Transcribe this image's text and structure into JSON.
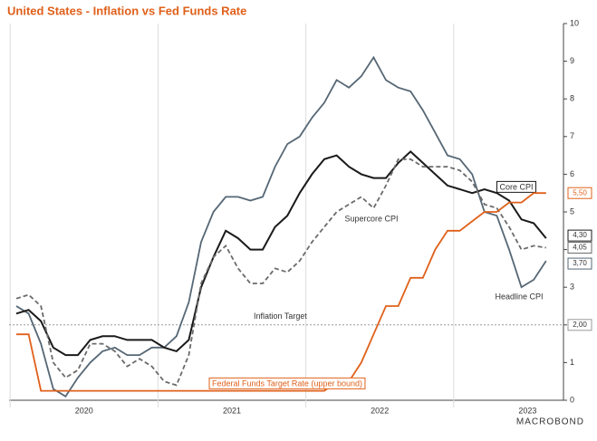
{
  "chart_data": {
    "type": "line",
    "title": "United States - Inflation vs Fed Funds Rate",
    "categories": [
      null,
      null,
      null,
      null,
      null,
      "2020",
      null,
      null,
      null,
      null,
      null,
      null,
      null,
      null,
      null,
      null,
      null,
      "2021",
      null,
      null,
      null,
      null,
      null,
      null,
      null,
      null,
      null,
      null,
      null,
      "2022",
      null,
      null,
      null,
      null,
      null,
      null,
      null,
      null,
      null,
      null,
      null,
      "2023",
      null,
      null
    ],
    "ylim": [
      0,
      10
    ],
    "yticks": [
      0,
      1,
      2,
      3,
      4,
      5,
      6,
      7,
      8,
      9,
      10
    ],
    "series": [
      {
        "name": "Headline CPI",
        "color": "#566775",
        "dash": false,
        "end_label": "3,70",
        "values": [
          2.5,
          2.3,
          1.5,
          0.3,
          0.1,
          0.6,
          1.0,
          1.3,
          1.4,
          1.2,
          1.2,
          1.4,
          1.4,
          1.7,
          2.6,
          4.2,
          5.0,
          5.4,
          5.4,
          5.3,
          5.4,
          6.2,
          6.8,
          7.0,
          7.5,
          7.9,
          8.5,
          8.3,
          8.6,
          9.1,
          8.5,
          8.3,
          8.2,
          7.7,
          7.1,
          6.5,
          6.4,
          6.0,
          5.0,
          4.9,
          4.0,
          3.0,
          3.2,
          3.7
        ]
      },
      {
        "name": "Core CPI",
        "color": "#1a1a1a",
        "dash": false,
        "end_label": "4,30",
        "values": [
          2.3,
          2.4,
          2.1,
          1.4,
          1.2,
          1.2,
          1.6,
          1.7,
          1.7,
          1.6,
          1.6,
          1.6,
          1.4,
          1.3,
          1.6,
          3.0,
          3.8,
          4.5,
          4.3,
          4.0,
          4.0,
          4.6,
          4.9,
          5.5,
          6.0,
          6.4,
          6.5,
          6.2,
          6.0,
          5.9,
          5.9,
          6.3,
          6.6,
          6.3,
          6.0,
          5.7,
          5.6,
          5.5,
          5.6,
          5.5,
          5.3,
          4.8,
          4.7,
          4.3
        ]
      },
      {
        "name": "Supercore CPI",
        "color": "#6b6b6b",
        "dash": true,
        "end_label": "4,05",
        "values": [
          2.7,
          2.8,
          2.5,
          1.0,
          0.6,
          0.8,
          1.5,
          1.5,
          1.3,
          0.9,
          1.1,
          0.9,
          0.5,
          0.4,
          1.2,
          3.1,
          3.8,
          4.1,
          3.5,
          3.1,
          3.1,
          3.5,
          3.4,
          3.7,
          4.2,
          4.6,
          5.0,
          5.2,
          5.4,
          5.1,
          5.7,
          6.4,
          6.4,
          6.2,
          6.2,
          6.2,
          6.1,
          5.8,
          5.2,
          5.1,
          4.6,
          4.0,
          4.1,
          4.05
        ]
      },
      {
        "name": "Federal Funds Target Rate (upper bound)",
        "color": "#e0601a",
        "dash": false,
        "end_label": "5,50",
        "values": [
          1.75,
          1.75,
          0.25,
          0.25,
          0.25,
          0.25,
          0.25,
          0.25,
          0.25,
          0.25,
          0.25,
          0.25,
          0.25,
          0.25,
          0.25,
          0.25,
          0.25,
          0.25,
          0.25,
          0.25,
          0.25,
          0.25,
          0.25,
          0.25,
          0.25,
          0.25,
          0.5,
          0.5,
          1.0,
          1.75,
          2.5,
          2.5,
          3.25,
          3.25,
          4.0,
          4.5,
          4.5,
          4.75,
          5.0,
          5.0,
          5.25,
          5.25,
          5.5,
          5.5
        ]
      }
    ],
    "target": {
      "label": "Inflation Target",
      "value": 2,
      "value_label": "2,00"
    },
    "logo": "MACROBOND"
  }
}
